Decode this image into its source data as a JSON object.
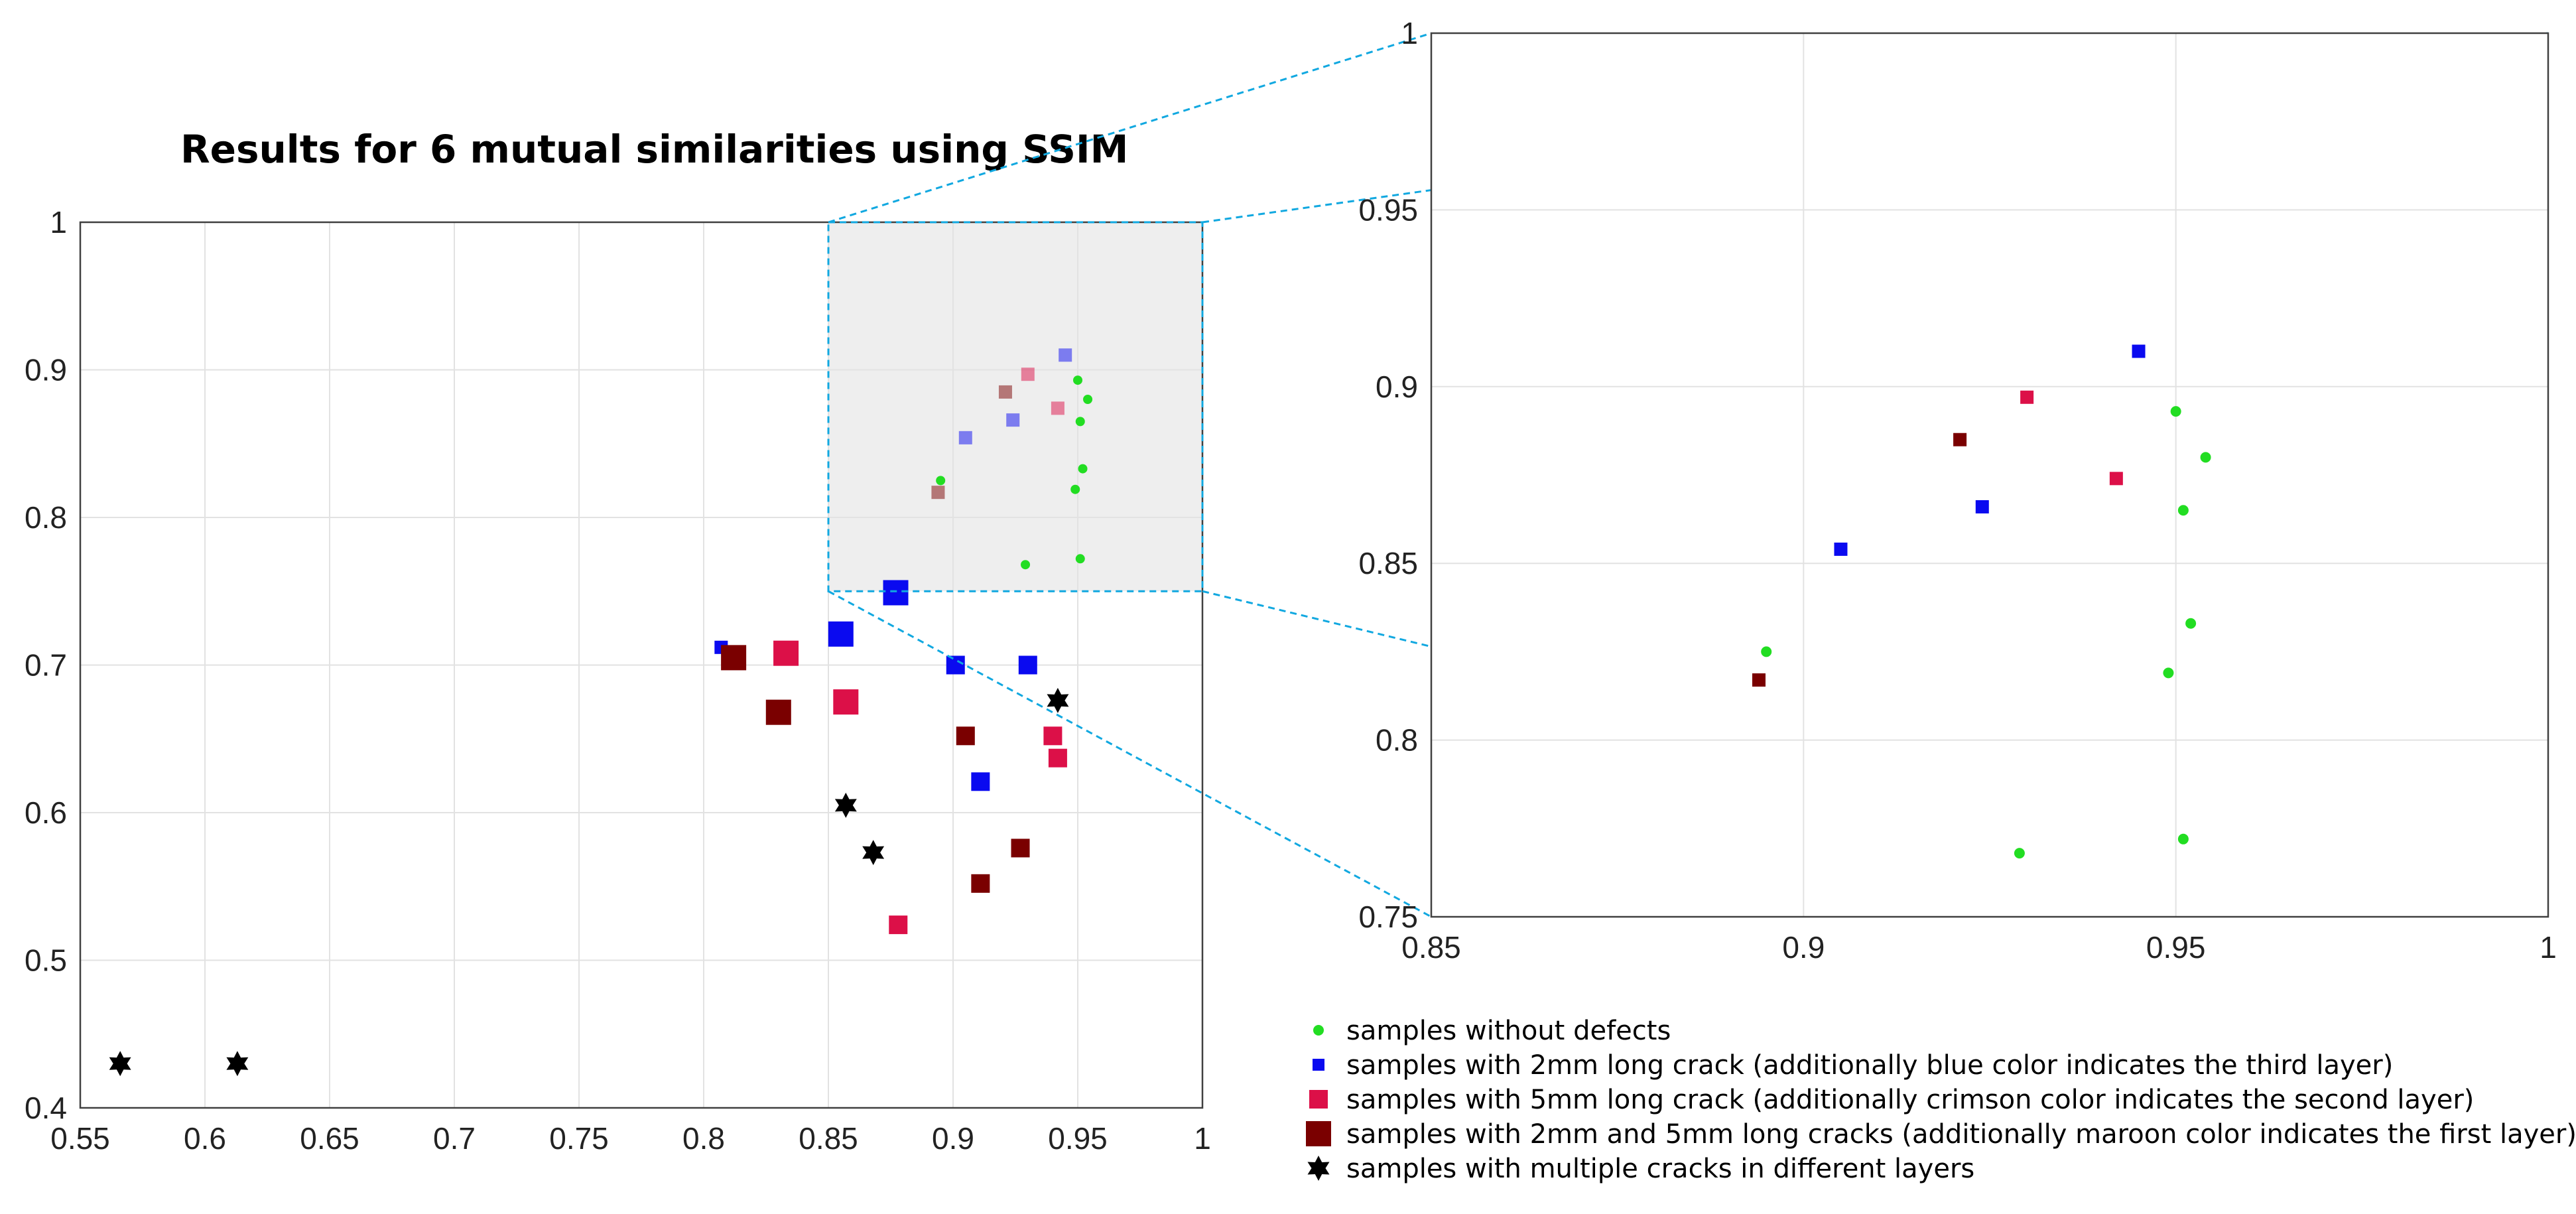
{
  "figure": {
    "title": "Results for 6 mutual similarities using SSIM"
  },
  "colors": {
    "no_defect": "#22dd22",
    "crack_2mm": "#0a0af0",
    "crack_5mm": "#dc1048",
    "crack_both": "#7a0000",
    "multi": "#000000",
    "zoom_line": "#11a8e0",
    "grid": "#e2e2e2",
    "zoom_shade": "#eeeeee"
  },
  "chart_data": [
    {
      "id": "main",
      "type": "scatter",
      "title": "Results for 6 mutual similarities using SSIM",
      "xlabel": "",
      "ylabel": "",
      "xlim": [
        0.55,
        1.0
      ],
      "ylim": [
        0.4,
        1.0
      ],
      "grid": true,
      "x_ticks": [
        "0.55",
        "0.6",
        "0.65",
        "0.7",
        "0.75",
        "0.8",
        "0.85",
        "0.9",
        "0.95",
        "1"
      ],
      "y_ticks": [
        "0.4",
        "0.5",
        "0.6",
        "0.7",
        "0.8",
        "0.9",
        "1"
      ],
      "zoom_region": {
        "xlim": [
          0.85,
          1.0
        ],
        "ylim": [
          0.75,
          1.0
        ]
      },
      "series": [
        {
          "name": "samples without defects",
          "marker": "circle",
          "size": "small",
          "color_key": "no_defect",
          "points": [
            [
              0.895,
              0.825
            ],
            [
              0.95,
              0.893
            ],
            [
              0.954,
              0.88
            ],
            [
              0.951,
              0.865
            ],
            [
              0.952,
              0.833
            ],
            [
              0.949,
              0.819
            ],
            [
              0.951,
              0.772
            ],
            [
              0.929,
              0.768
            ]
          ]
        },
        {
          "name": "samples with 2mm long crack (additionally blue color indicates the third layer)",
          "marker": "square",
          "color_key": "crack_2mm",
          "points": [
            [
              0.945,
              0.91,
              "small"
            ],
            [
              0.905,
              0.854,
              "small"
            ],
            [
              0.924,
              0.866,
              "small"
            ],
            [
              0.807,
              0.712,
              "small"
            ],
            [
              0.855,
              0.721,
              "large"
            ],
            [
              0.877,
              0.749,
              "large"
            ],
            [
              0.901,
              0.7,
              "medium"
            ],
            [
              0.93,
              0.7,
              "medium"
            ],
            [
              0.911,
              0.621,
              "medium"
            ]
          ]
        },
        {
          "name": "samples with 5mm long crack (additionally crimson color indicates the second layer)",
          "marker": "square",
          "color_key": "crack_5mm",
          "points": [
            [
              0.93,
              0.897,
              "small"
            ],
            [
              0.942,
              0.874,
              "small"
            ],
            [
              0.833,
              0.708,
              "large"
            ],
            [
              0.857,
              0.675,
              "large"
            ],
            [
              0.94,
              0.652,
              "medium"
            ],
            [
              0.942,
              0.637,
              "medium"
            ],
            [
              0.878,
              0.524,
              "medium"
            ]
          ]
        },
        {
          "name": "samples with 2mm and 5mm long cracks (additionally maroon color indicates the first layer)",
          "marker": "square",
          "color_key": "crack_both",
          "points": [
            [
              0.921,
              0.885,
              "small"
            ],
            [
              0.894,
              0.817,
              "small"
            ],
            [
              0.812,
              0.705,
              "large"
            ],
            [
              0.83,
              0.668,
              "large"
            ],
            [
              0.905,
              0.652,
              "medium"
            ],
            [
              0.927,
              0.576,
              "medium"
            ],
            [
              0.911,
              0.552,
              "medium"
            ]
          ]
        },
        {
          "name": "samples with multiple cracks in different layers",
          "marker": "hexagram",
          "size": "medium",
          "color_key": "multi",
          "points": [
            [
              0.942,
              0.676
            ],
            [
              0.857,
              0.605
            ],
            [
              0.868,
              0.573
            ],
            [
              0.566,
              0.43
            ],
            [
              0.613,
              0.43
            ]
          ]
        }
      ]
    },
    {
      "id": "zoom",
      "type": "scatter",
      "title": "",
      "xlabel": "",
      "ylabel": "",
      "xlim": [
        0.85,
        1.0
      ],
      "ylim": [
        0.75,
        1.0
      ],
      "grid": true,
      "x_ticks": [
        "0.85",
        "0.9",
        "0.95",
        "1"
      ],
      "y_ticks": [
        "0.75",
        "0.8",
        "0.85",
        "0.9",
        "0.95",
        "1"
      ],
      "series": [
        {
          "name": "samples without defects",
          "marker": "circle",
          "color_key": "no_defect",
          "points": [
            [
              0.895,
              0.825
            ],
            [
              0.95,
              0.893
            ],
            [
              0.954,
              0.88
            ],
            [
              0.951,
              0.865
            ],
            [
              0.952,
              0.833
            ],
            [
              0.949,
              0.819
            ],
            [
              0.951,
              0.772
            ],
            [
              0.929,
              0.768
            ]
          ]
        },
        {
          "name": "samples with 2mm long crack",
          "marker": "square",
          "color_key": "crack_2mm",
          "points": [
            [
              0.945,
              0.91
            ],
            [
              0.905,
              0.854
            ],
            [
              0.924,
              0.866
            ]
          ]
        },
        {
          "name": "samples with 5mm long crack",
          "marker": "square",
          "color_key": "crack_5mm",
          "points": [
            [
              0.93,
              0.897
            ],
            [
              0.942,
              0.874
            ]
          ]
        },
        {
          "name": "samples with 2mm and 5mm long cracks",
          "marker": "square",
          "color_key": "crack_both",
          "points": [
            [
              0.921,
              0.885
            ],
            [
              0.894,
              0.817
            ]
          ]
        }
      ]
    }
  ],
  "legend": {
    "placement": "bottom-right",
    "items": [
      {
        "label": "samples without defects",
        "marker": "circle",
        "color_key": "no_defect"
      },
      {
        "label": "samples with 2mm long crack (additionally blue color indicates the third layer)",
        "marker": "square",
        "size": "small",
        "color_key": "crack_2mm"
      },
      {
        "label": "samples with 5mm long crack (additionally crimson color indicates the second layer)",
        "marker": "square",
        "size": "medium",
        "color_key": "crack_5mm"
      },
      {
        "label": "samples with 2mm and 5mm long cracks (additionally maroon color indicates the first layer)",
        "marker": "square",
        "size": "large",
        "color_key": "crack_both"
      },
      {
        "label": "samples with multiple cracks in different layers",
        "marker": "hexagram",
        "color_key": "multi"
      }
    ]
  }
}
